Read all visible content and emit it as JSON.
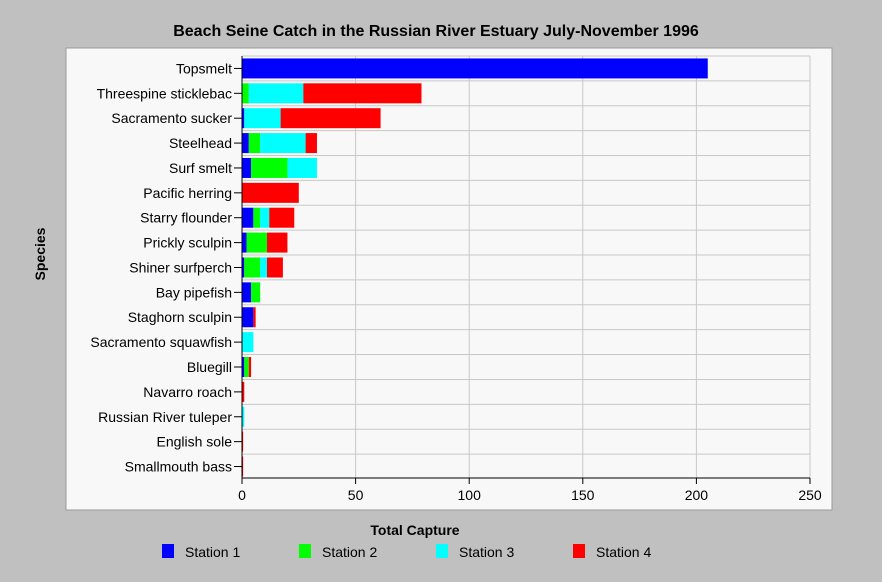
{
  "chart_data": {
    "type": "bar",
    "orientation": "horizontal",
    "stacked": true,
    "title": "Beach Seine Catch in the Russian River Estuary July-November 1996",
    "xlabel": "Total Capture",
    "ylabel": "Species",
    "xlim": [
      0,
      250
    ],
    "xticks": [
      0,
      50,
      100,
      150,
      200,
      250
    ],
    "grid": true,
    "legend_position": "bottom",
    "categories": [
      "Topsmelt",
      "Threespine sticklebac",
      "Sacramento sucker",
      "Steelhead",
      "Surf smelt",
      "Pacific herring",
      "Starry flounder",
      "Prickly sculpin",
      "Shiner surfperch",
      "Bay pipefish",
      "Staghorn sculpin",
      "Sacramento squawfish",
      "Bluegill",
      "Navarro roach",
      "Russian River tuleper",
      "English sole",
      "Smallmouth bass"
    ],
    "series": [
      {
        "name": "Station 1",
        "color": "#0000ff",
        "values": [
          205,
          0,
          1,
          3,
          4,
          0,
          5,
          2,
          1,
          4,
          5,
          0,
          1,
          0,
          0,
          0,
          0
        ]
      },
      {
        "name": "Station 2",
        "color": "#00ff00",
        "values": [
          0,
          3,
          0,
          5,
          16,
          0,
          3,
          9,
          7,
          4,
          0,
          0,
          2,
          0,
          0,
          0,
          0
        ]
      },
      {
        "name": "Station 3",
        "color": "#00ffff",
        "values": [
          0,
          24,
          16,
          20,
          13,
          0,
          4,
          0,
          3,
          0,
          0,
          5,
          0,
          0,
          1,
          0,
          0
        ]
      },
      {
        "name": "Station 4",
        "color": "#ff0000",
        "values": [
          0,
          52,
          44,
          5,
          0,
          25,
          11,
          9,
          7,
          0,
          1,
          0,
          1,
          1,
          0,
          0.5,
          0.5
        ]
      }
    ]
  }
}
